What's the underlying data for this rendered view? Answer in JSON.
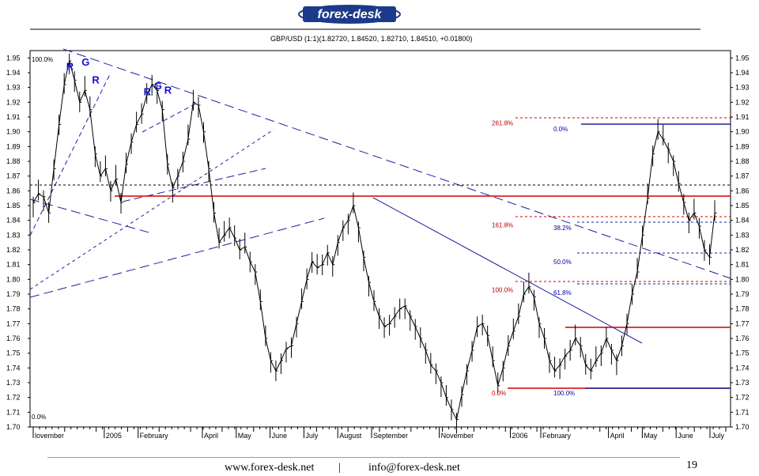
{
  "header": {
    "logo_text": "forex-desk"
  },
  "chart_data": {
    "type": "line",
    "title": "GBP/USD (1:1)(1.82720, 1.84520, 1.82710, 1.84510, +0.01800)",
    "ylim": [
      1.7,
      1.955
    ],
    "y_ticks": [
      "1.95",
      "1.94",
      "1.93",
      "1.92",
      "1.91",
      "1.90",
      "1.89",
      "1.88",
      "1.87",
      "1.86",
      "1.85",
      "1.84",
      "1.83",
      "1.82",
      "1.81",
      "1.80",
      "1.79",
      "1.78",
      "1.77",
      "1.76",
      "1.75",
      "1.74",
      "1.73",
      "1.72",
      "1.71",
      "1.70"
    ],
    "x_ticks": [
      {
        "label": "lovember",
        "x": 0
      },
      {
        "label": "2005",
        "x": 10.5
      },
      {
        "label": "February",
        "x": 15.5
      },
      {
        "label": "April",
        "x": 25
      },
      {
        "label": "May",
        "x": 30
      },
      {
        "label": "June",
        "x": 35
      },
      {
        "label": "July",
        "x": 40
      },
      {
        "label": "August",
        "x": 45
      },
      {
        "label": "September",
        "x": 50
      },
      {
        "label": "November",
        "x": 60
      },
      {
        "label": "2006",
        "x": 70.5
      },
      {
        "label": "February",
        "x": 75
      },
      {
        "label": "April",
        "x": 85
      },
      {
        "label": "May",
        "x": 90
      },
      {
        "label": "June",
        "x": 95
      },
      {
        "label": "July",
        "x": 100
      }
    ],
    "series": [
      {
        "values": [
          [
            0,
            1.852
          ],
          [
            1,
            1.858
          ],
          [
            2,
            1.856
          ],
          [
            3,
            1.845
          ],
          [
            4,
            1.875
          ],
          [
            5,
            1.905
          ],
          [
            6,
            1.932
          ],
          [
            7,
            1.948
          ],
          [
            8,
            1.935
          ],
          [
            9,
            1.92
          ],
          [
            10,
            1.928
          ],
          [
            11,
            1.915
          ],
          [
            12,
            1.885
          ],
          [
            13,
            1.87
          ],
          [
            14,
            1.875
          ],
          [
            15,
            1.86
          ],
          [
            16,
            1.868
          ],
          [
            17,
            1.852
          ],
          [
            18,
            1.878
          ],
          [
            19,
            1.893
          ],
          [
            20,
            1.905
          ],
          [
            21,
            1.912
          ],
          [
            22,
            1.925
          ],
          [
            23,
            1.932
          ],
          [
            24,
            1.928
          ],
          [
            25,
            1.915
          ],
          [
            26,
            1.878
          ],
          [
            27,
            1.862
          ],
          [
            28,
            1.87
          ],
          [
            29,
            1.88
          ],
          [
            30,
            1.895
          ],
          [
            31,
            1.92
          ],
          [
            32,
            1.918
          ],
          [
            33,
            1.9
          ],
          [
            34,
            1.875
          ],
          [
            35,
            1.845
          ],
          [
            36,
            1.825
          ],
          [
            37,
            1.83
          ],
          [
            38,
            1.835
          ],
          [
            39,
            1.828
          ],
          [
            40,
            1.82
          ],
          [
            41,
            1.822
          ],
          [
            42,
            1.812
          ],
          [
            43,
            1.805
          ],
          [
            44,
            1.785
          ],
          [
            45,
            1.76
          ],
          [
            46,
            1.745
          ],
          [
            47,
            1.738
          ],
          [
            48,
            1.745
          ],
          [
            49,
            1.753
          ],
          [
            50,
            1.755
          ],
          [
            51,
            1.77
          ],
          [
            52,
            1.785
          ],
          [
            53,
            1.8
          ],
          [
            54,
            1.812
          ],
          [
            55,
            1.808
          ],
          [
            56,
            1.81
          ],
          [
            57,
            1.818
          ],
          [
            58,
            1.81
          ],
          [
            59,
            1.825
          ],
          [
            60,
            1.835
          ],
          [
            61,
            1.84
          ],
          [
            62,
            1.85
          ],
          [
            63,
            1.835
          ],
          [
            64,
            1.815
          ],
          [
            65,
            1.798
          ],
          [
            66,
            1.785
          ],
          [
            67,
            1.775
          ],
          [
            68,
            1.768
          ],
          [
            69,
            1.77
          ],
          [
            70,
            1.775
          ],
          [
            71,
            1.78
          ],
          [
            72,
            1.782
          ],
          [
            73,
            1.775
          ],
          [
            74,
            1.768
          ],
          [
            75,
            1.76
          ],
          [
            76,
            1.752
          ],
          [
            77,
            1.742
          ],
          [
            78,
            1.738
          ],
          [
            79,
            1.73
          ],
          [
            80,
            1.72
          ],
          [
            81,
            1.712
          ],
          [
            82,
            1.705
          ],
          [
            83,
            1.722
          ],
          [
            84,
            1.738
          ],
          [
            85,
            1.752
          ],
          [
            86,
            1.768
          ],
          [
            87,
            1.77
          ],
          [
            88,
            1.762
          ],
          [
            89,
            1.745
          ],
          [
            90,
            1.728
          ],
          [
            91,
            1.74
          ],
          [
            92,
            1.755
          ],
          [
            93,
            1.765
          ],
          [
            94,
            1.775
          ],
          [
            95,
            1.79
          ],
          [
            96,
            1.795
          ],
          [
            97,
            1.788
          ],
          [
            98,
            1.77
          ],
          [
            99,
            1.76
          ],
          [
            100,
            1.745
          ],
          [
            101,
            1.738
          ],
          [
            102,
            1.742
          ],
          [
            103,
            1.748
          ],
          [
            104,
            1.752
          ],
          [
            105,
            1.76
          ],
          [
            106,
            1.755
          ],
          [
            107,
            1.742
          ],
          [
            108,
            1.738
          ],
          [
            109,
            1.745
          ],
          [
            110,
            1.75
          ],
          [
            111,
            1.76
          ],
          [
            112,
            1.752
          ],
          [
            113,
            1.745
          ],
          [
            114,
            1.755
          ],
          [
            115,
            1.77
          ],
          [
            116,
            1.79
          ],
          [
            117,
            1.805
          ],
          [
            118,
            1.83
          ],
          [
            119,
            1.855
          ],
          [
            120,
            1.885
          ],
          [
            121,
            1.9
          ],
          [
            122,
            1.895
          ],
          [
            123,
            1.888
          ],
          [
            124,
            1.88
          ],
          [
            125,
            1.865
          ],
          [
            126,
            1.852
          ],
          [
            127,
            1.84
          ],
          [
            128,
            1.845
          ],
          [
            129,
            1.836
          ],
          [
            130,
            1.82
          ],
          [
            131,
            1.815
          ],
          [
            132,
            1.845
          ]
        ]
      }
    ],
    "fib_labels": [
      {
        "text": "261.8%",
        "y": 1.906,
        "color": "#c00000"
      },
      {
        "text": "161.8%",
        "y": 1.837,
        "color": "#c00000"
      },
      {
        "text": "100.0%",
        "y": 1.793,
        "color": "#c00000"
      },
      {
        "text": "0.0%",
        "y": 1.723,
        "color": "#c00000"
      },
      {
        "text": "0.0%",
        "y": 1.902,
        "color": "#0000aa"
      },
      {
        "text": "38.2%",
        "y": 1.835,
        "color": "#0000aa"
      },
      {
        "text": "50.0%",
        "y": 1.812,
        "color": "#0000aa"
      },
      {
        "text": "61.8%",
        "y": 1.791,
        "color": "#0000aa"
      },
      {
        "text": "100.0%",
        "y": 1.723,
        "color": "#0000aa"
      }
    ],
    "left_labels": [
      {
        "text": "100.0%",
        "y": 1.949
      },
      {
        "text": "0.0%",
        "y": 1.707
      }
    ],
    "pattern_labels": [
      {
        "text": "R",
        "x": 7,
        "y": 1.945
      },
      {
        "text": "G",
        "x": 10,
        "y": 1.948
      },
      {
        "text": "R",
        "x": 12,
        "y": 1.936
      },
      {
        "text": "R",
        "x": 22,
        "y": 1.928
      },
      {
        "text": "G",
        "x": 24,
        "y": 1.932
      },
      {
        "text": "R",
        "x": 26,
        "y": 1.929
      }
    ]
  },
  "footer": {
    "website": "www.forex-desk.net",
    "separator": "|",
    "email": "info@forex-desk.net",
    "page_number": "19"
  },
  "colors": {
    "price": "#000000",
    "red": "#d00000",
    "blue": "#2020a0",
    "label_blue": "#1010d0"
  }
}
